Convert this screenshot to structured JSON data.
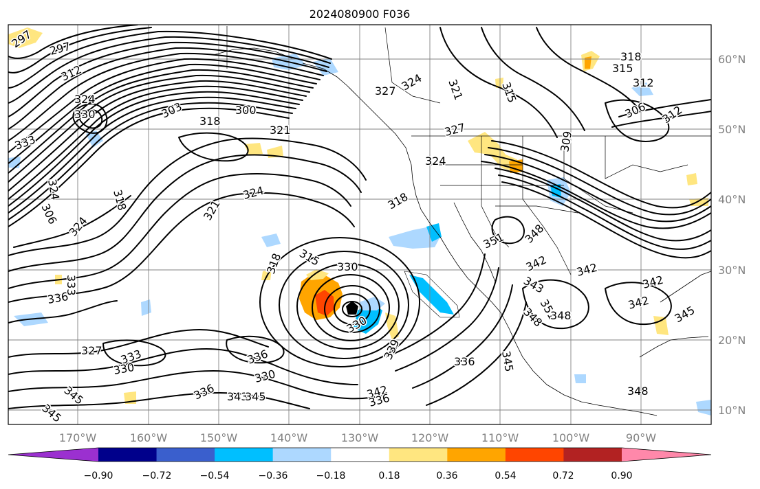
{
  "title": "2024080900 F036",
  "longitude_labels": [
    "170°W",
    "160°W",
    "150°W",
    "140°W",
    "130°W",
    "120°W",
    "110°W",
    "100°W",
    "90°W"
  ],
  "latitude_labels": [
    "60°N",
    "50°N",
    "40°N",
    "30°N",
    "20°N",
    "10°N"
  ],
  "colorbar": {
    "colors": [
      "#9b30d0",
      "#00008b",
      "#3a5fcd",
      "#00bfff",
      "#add8ff",
      "#ffffff",
      "#ffe680",
      "#ffa500",
      "#ff4500",
      "#b22222",
      "#ff88aa"
    ],
    "tick_labels": [
      "−0.90",
      "−0.72",
      "−0.54",
      "−0.36",
      "−0.18",
      "0.18",
      "0.36",
      "0.54",
      "0.72",
      "0.90"
    ]
  },
  "contour_labels": [
    "297",
    "297",
    "312",
    "324",
    "330",
    "333",
    "324",
    "306",
    "324",
    "318",
    "303",
    "300",
    "318",
    "321",
    "327",
    "324",
    "321",
    "315",
    "327",
    "324",
    "318",
    "330",
    "315",
    "318",
    "333",
    "336",
    "327",
    "333",
    "330",
    "336",
    "330",
    "345",
    "345",
    "336",
    "343",
    "345",
    "342",
    "336",
    "339",
    "336",
    "345",
    "330",
    "351",
    "348",
    "342",
    "343",
    "348",
    "351",
    "348",
    "342",
    "342",
    "342",
    "345",
    "348",
    "318",
    "315",
    "312",
    "306",
    "312",
    "309",
    "324",
    "321"
  ]
}
